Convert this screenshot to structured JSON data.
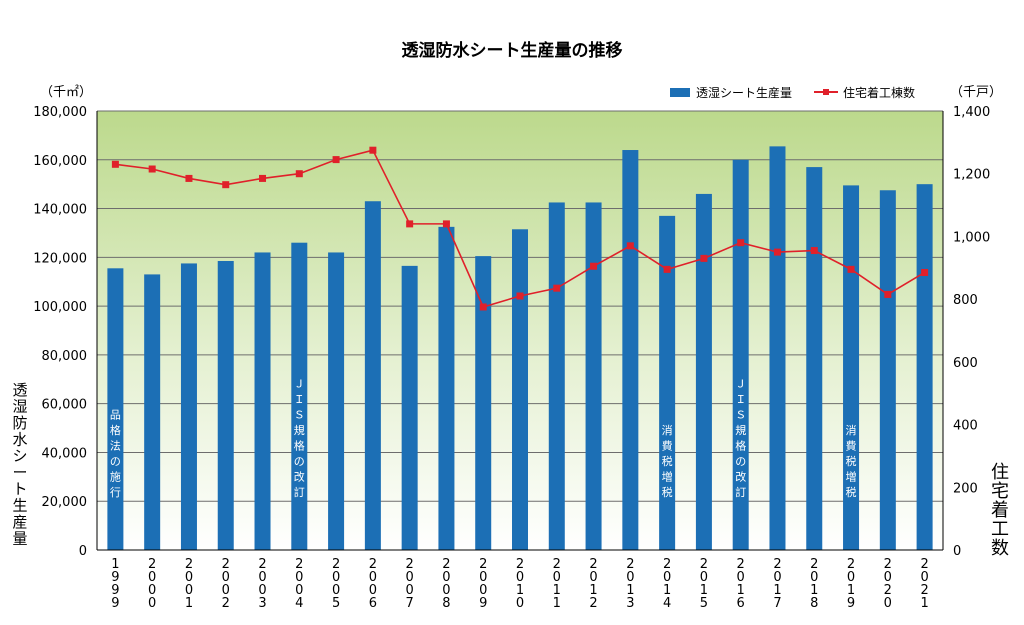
{
  "chart_data": {
    "type": "bar",
    "title": "透湿防水シート生産量の推移",
    "left_unit": "（千㎡）",
    "right_unit": "（千戸）",
    "ylabel_left": "透湿防水シート生産量",
    "ylabel_right": "住宅着工数",
    "ylim_left": [
      0,
      180000
    ],
    "ylim_right": [
      0,
      1400
    ],
    "left_ticks": [
      "0",
      "20,000",
      "40,000",
      "60,000",
      "80,000",
      "100,000",
      "120,000",
      "140,000",
      "160,000",
      "180,000"
    ],
    "right_ticks": [
      "0",
      "200",
      "400",
      "600",
      "800",
      "1,000",
      "1,200",
      "1,400"
    ],
    "grid": true,
    "legend_position": "top-right",
    "categories": [
      "1999",
      "2000",
      "2001",
      "2002",
      "2003",
      "2004",
      "2005",
      "2006",
      "2007",
      "2008",
      "2009",
      "2010",
      "2011",
      "2012",
      "2013",
      "2014",
      "2015",
      "2016",
      "2017",
      "2018",
      "2019",
      "2020",
      "2021"
    ],
    "series": [
      {
        "name": "透湿シート生産量",
        "kind": "bar",
        "axis": "left",
        "color": "#1c6fb5",
        "values": [
          115500,
          113000,
          117500,
          118500,
          122000,
          126000,
          122000,
          143000,
          116500,
          132500,
          120500,
          131500,
          142500,
          142500,
          164000,
          137000,
          146000,
          160000,
          165500,
          157000,
          149500,
          147500,
          150000
        ]
      },
      {
        "name": "住宅着工棟数",
        "kind": "line",
        "axis": "right",
        "color": "#e0202a",
        "values": [
          1230,
          1215,
          1185,
          1165,
          1185,
          1200,
          1245,
          1275,
          1040,
          1040,
          775,
          810,
          835,
          905,
          970,
          895,
          930,
          980,
          950,
          955,
          895,
          815,
          885
        ]
      }
    ],
    "annotations": [
      {
        "category": "1999",
        "text": "品格法の施行"
      },
      {
        "category": "2004",
        "text": "ＪＩＳ規格の改訂"
      },
      {
        "category": "2014",
        "text": "消費税増税"
      },
      {
        "category": "2016",
        "text": "ＪＩＳ規格の改訂"
      },
      {
        "category": "2019",
        "text": "消費税増税"
      }
    ]
  }
}
